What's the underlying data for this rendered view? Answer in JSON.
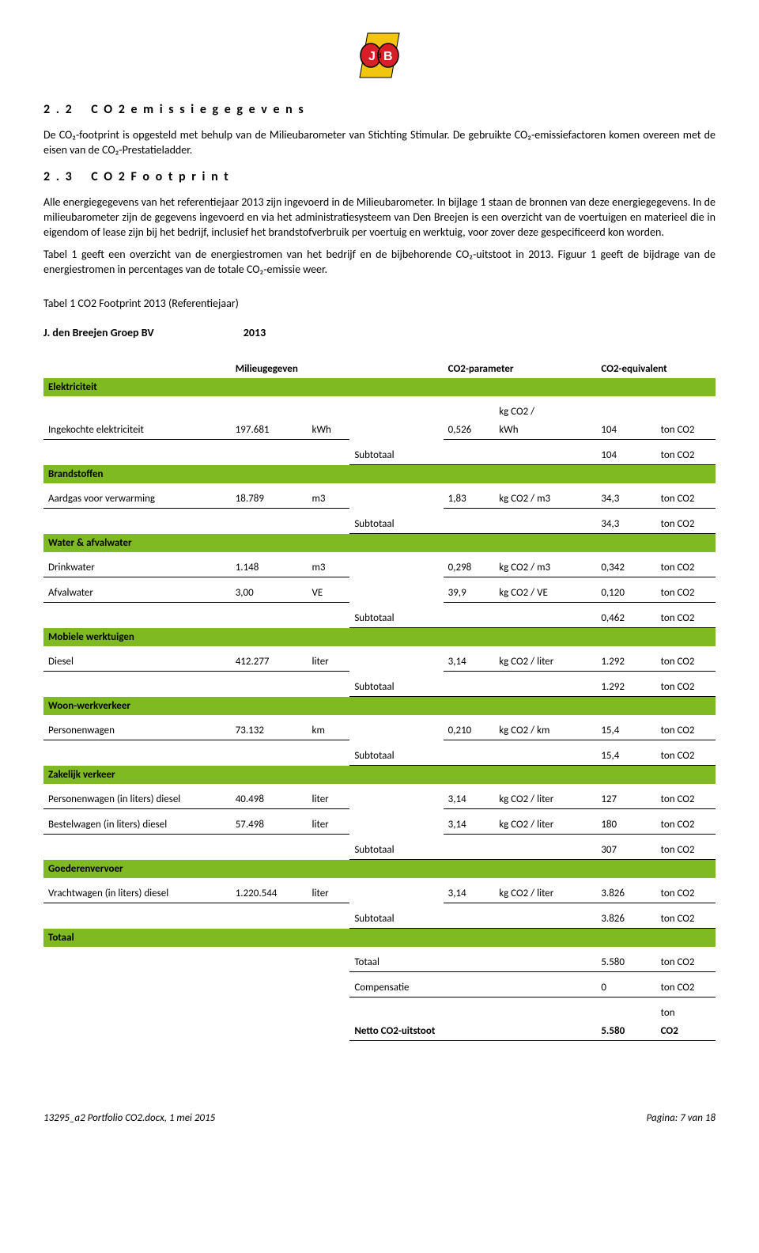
{
  "logo": {
    "bg": "#f2c511",
    "red": "#d81e26",
    "text_color": "#ffffff"
  },
  "section22": {
    "number": "2 . 2",
    "title": "C O 2  e m i s s i e g e g e v e n s",
    "p1": "De CO₂-footprint is opgesteld met behulp van de Milieubarometer van Stichting Stimular. De gebruikte CO₂-emissiefactoren komen overeen met de eisen van de CO₂-Prestatieladder."
  },
  "section23": {
    "number": "2 . 3",
    "title": "C O 2  F o o t p r i n t",
    "p1": "Alle energiegegevens van het referentiejaar 2013 zijn ingevoerd in de Milieubarometer. In bijlage 1 staan de bronnen van deze energiegegevens. In de milieubarometer zijn de gegevens ingevoerd en via het administratiesysteem van Den Breejen is een overzicht van de voertuigen en materieel die in eigendom of lease zijn bij het bedrijf, inclusief het brandstofverbruik per voertuig en werktuig, voor zover deze gespecificeerd kon worden.",
    "p2": "Tabel 1 geeft een overzicht van de energiestromen van het bedrijf en de bijbehorende CO₂-uitstoot in 2013. Figuur 1 geeft de bijdrage van de energiestromen in percentages van de totale CO₂-emissie weer."
  },
  "table_title": "Tabel 1 CO2 Footprint 2013 (Referentiejaar)",
  "company": "J. den Breejen Groep BV",
  "year": "2013",
  "col_headers": {
    "milieu": "Milieugegeven",
    "param": "CO2-parameter",
    "equiv": "CO2-equivalent"
  },
  "labels": {
    "subtotaal": "Subtotaal",
    "totaal": "Totaal",
    "compensatie": "Compensatie",
    "netto": "Netto CO2-uitstoot"
  },
  "sections": [
    {
      "name": "Elektriciteit",
      "rows": [
        {
          "label": "Ingekochte elektriciteit",
          "value": "197.681",
          "unit": "kWh",
          "factor": "0,526",
          "factor_unit_top": "kg CO2 /",
          "factor_unit": "kWh",
          "co2": "104",
          "co2_unit": "ton CO2"
        }
      ],
      "subtotal": {
        "co2": "104",
        "co2_unit": "ton CO2"
      }
    },
    {
      "name": "Brandstoffen",
      "rows": [
        {
          "label": "Aardgas voor verwarming",
          "value": "18.789",
          "unit": "m3",
          "factor": "1,83",
          "factor_unit": "kg CO2 / m3",
          "co2": "34,3",
          "co2_unit": "ton CO2"
        }
      ],
      "subtotal": {
        "co2": "34,3",
        "co2_unit": "ton CO2"
      }
    },
    {
      "name": "Water & afvalwater",
      "rows": [
        {
          "label": "Drinkwater",
          "value": "1.148",
          "unit": "m3",
          "factor": "0,298",
          "factor_unit": "kg CO2 / m3",
          "co2": "0,342",
          "co2_unit": "ton CO2"
        },
        {
          "label": "Afvalwater",
          "value": "3,00",
          "unit": "VE",
          "factor": "39,9",
          "factor_unit": "kg CO2 / VE",
          "co2": "0,120",
          "co2_unit": "ton CO2"
        }
      ],
      "subtotal": {
        "co2": "0,462",
        "co2_unit": "ton CO2"
      }
    },
    {
      "name": "Mobiele werktuigen",
      "rows": [
        {
          "label": "Diesel",
          "value": "412.277",
          "unit": "liter",
          "factor": "3,14",
          "factor_unit": "kg CO2 / liter",
          "co2": "1.292",
          "co2_unit": "ton CO2"
        }
      ],
      "subtotal": {
        "co2": "1.292",
        "co2_unit": "ton CO2"
      }
    },
    {
      "name": "Woon-werkverkeer",
      "rows": [
        {
          "label": "Personenwagen",
          "value": "73.132",
          "unit": "km",
          "factor": "0,210",
          "factor_unit": "kg CO2 / km",
          "co2": "15,4",
          "co2_unit": "ton CO2"
        }
      ],
      "subtotal": {
        "co2": "15,4",
        "co2_unit": "ton CO2"
      }
    },
    {
      "name": "Zakelijk verkeer",
      "rows": [
        {
          "label": "Personenwagen (in liters) diesel",
          "value": "40.498",
          "unit": "liter",
          "factor": "3,14",
          "factor_unit": "kg CO2 / liter",
          "co2": "127",
          "co2_unit": "ton CO2"
        },
        {
          "label": "Bestelwagen (in liters) diesel",
          "value": "57.498",
          "unit": "liter",
          "factor": "3,14",
          "factor_unit": "kg CO2 / liter",
          "co2": "180",
          "co2_unit": "ton CO2"
        }
      ],
      "subtotal": {
        "co2": "307",
        "co2_unit": "ton CO2"
      }
    },
    {
      "name": "Goederenvervoer",
      "rows": [
        {
          "label": "Vrachtwagen (in liters) diesel",
          "value": "1.220.544",
          "unit": "liter",
          "factor": "3,14",
          "factor_unit": "kg CO2 / liter",
          "co2": "3.826",
          "co2_unit": "ton CO2"
        }
      ],
      "subtotal": {
        "co2": "3.826",
        "co2_unit": "ton CO2"
      }
    }
  ],
  "totals": {
    "totaal": {
      "co2": "5.580",
      "co2_unit": "ton CO2"
    },
    "compensatie": {
      "co2": "0",
      "co2_unit": "ton CO2"
    },
    "netto": {
      "co2": "5.580",
      "co2_unit_top": "ton",
      "co2_unit": "CO2"
    }
  },
  "footer": {
    "left": "13295_a2 Portfolio CO2.docx, 1 mei 2015",
    "right": "Pagina: 7 van 18"
  },
  "colors": {
    "section_bg": "#7fba23",
    "text": "#000000",
    "border": "#000000"
  }
}
